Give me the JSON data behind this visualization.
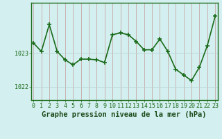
{
  "x": [
    0,
    1,
    2,
    3,
    4,
    5,
    6,
    7,
    8,
    9,
    10,
    11,
    12,
    13,
    14,
    15,
    16,
    17,
    18,
    19,
    20,
    21,
    22,
    23
  ],
  "y": [
    1023.3,
    1023.05,
    1023.85,
    1023.05,
    1022.8,
    1022.65,
    1022.82,
    1022.82,
    1022.8,
    1022.72,
    1023.55,
    1023.6,
    1023.55,
    1023.35,
    1023.1,
    1023.1,
    1023.42,
    1023.05,
    1022.52,
    1022.35,
    1022.18,
    1022.58,
    1023.22,
    1024.1
  ],
  "line_color": "#1a6b1a",
  "marker_color": "#1a6b1a",
  "bg_color": "#d4efef",
  "vgrid_color": "#c8a8a8",
  "hgrid_color": "#b8d4d4",
  "border_color": "#1a6b1a",
  "xlabel": "Graphe pression niveau de la mer (hPa)",
  "ytick_labels": [
    "1022",
    "1023"
  ],
  "ytick_values": [
    1022.0,
    1023.0
  ],
  "ylim": [
    1021.6,
    1024.5
  ],
  "xlim": [
    -0.3,
    23.3
  ],
  "xtick_labels": [
    "0",
    "1",
    "2",
    "3",
    "4",
    "5",
    "6",
    "7",
    "8",
    "9",
    "10",
    "11",
    "12",
    "13",
    "14",
    "15",
    "16",
    "17",
    "18",
    "19",
    "20",
    "21",
    "22",
    "23"
  ],
  "xlabel_fontsize": 7.5,
  "tick_fontsize": 6.0,
  "line_width": 1.2,
  "marker_size": 4.0,
  "marker_ew": 1.2
}
